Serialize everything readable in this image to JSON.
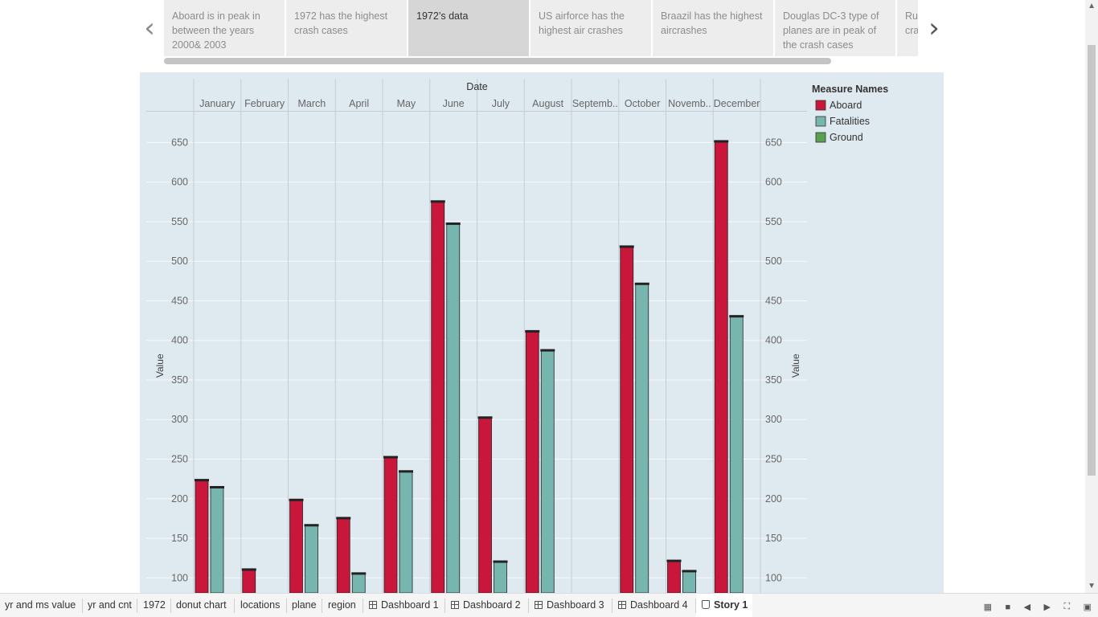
{
  "story": {
    "points": [
      {
        "text": "Aboard is in peak in between the years 2000& 2003"
      },
      {
        "text": "1972 has the highest crash cases"
      },
      {
        "text": "1972’s data"
      },
      {
        "text": "US airforce has the highest air crashes"
      },
      {
        "text": "Braazil has the highest aircrashes"
      },
      {
        "text": "Douglas DC-3 type of planes are in peak of the crash cases"
      },
      {
        "text": "Russia is the highest crash..."
      }
    ],
    "active_index": 2,
    "prev_icon": "chevron-left-icon",
    "next_icon": "chevron-right-icon"
  },
  "chart_data": {
    "type": "bar",
    "column_header": "Date",
    "categories": [
      "January",
      "February",
      "March",
      "April",
      "May",
      "June",
      "July",
      "August",
      "Septemb..",
      "October",
      "Novemb..",
      "December"
    ],
    "series": [
      {
        "name": "Aboard",
        "color": "#c8173a",
        "values": [
          224,
          111,
          199,
          176,
          253,
          576,
          303,
          412,
          null,
          519,
          122,
          652
        ]
      },
      {
        "name": "Fatalities",
        "color": "#76b6ae",
        "values": [
          215,
          null,
          167,
          106,
          235,
          548,
          121,
          388,
          null,
          472,
          109,
          431
        ]
      },
      {
        "name": "Ground",
        "color": "#59a14f",
        "values": [
          null,
          null,
          null,
          null,
          null,
          null,
          null,
          null,
          null,
          null,
          null,
          null
        ]
      }
    ],
    "ylabel": "Value",
    "y2label": "Value",
    "yticks": [
      100,
      150,
      200,
      250,
      300,
      350,
      400,
      450,
      500,
      550,
      600,
      650
    ],
    "yrange_visible": [
      81,
      690
    ],
    "grid": true,
    "legend": {
      "title": "Measure Names",
      "placement": "right",
      "items": [
        {
          "label": "Aboard",
          "color": "#c8173a"
        },
        {
          "label": "Fatalities",
          "color": "#76b6ae"
        },
        {
          "label": "Ground",
          "color": "#59a14f"
        }
      ]
    }
  },
  "tabs": [
    {
      "label": "yr and ms value",
      "type": "sheet"
    },
    {
      "label": "yr and cnt",
      "type": "sheet"
    },
    {
      "label": "1972",
      "type": "sheet"
    },
    {
      "label": "donut chart",
      "type": "sheet"
    },
    {
      "label": "locations",
      "type": "sheet"
    },
    {
      "label": "plane",
      "type": "sheet"
    },
    {
      "label": "region",
      "type": "sheet"
    },
    {
      "label": "Dashboard 1",
      "type": "dashboard"
    },
    {
      "label": "Dashboard 2",
      "type": "dashboard"
    },
    {
      "label": "Dashboard 3",
      "type": "dashboard"
    },
    {
      "label": "Dashboard 4",
      "type": "dashboard"
    },
    {
      "label": "Story 1",
      "type": "story",
      "active": true
    }
  ],
  "bottom_controls": [
    "grid-view-icon",
    "single-view-icon",
    "prev-sheet-icon",
    "next-sheet-icon",
    "fullscreen-icon",
    "present-icon"
  ]
}
